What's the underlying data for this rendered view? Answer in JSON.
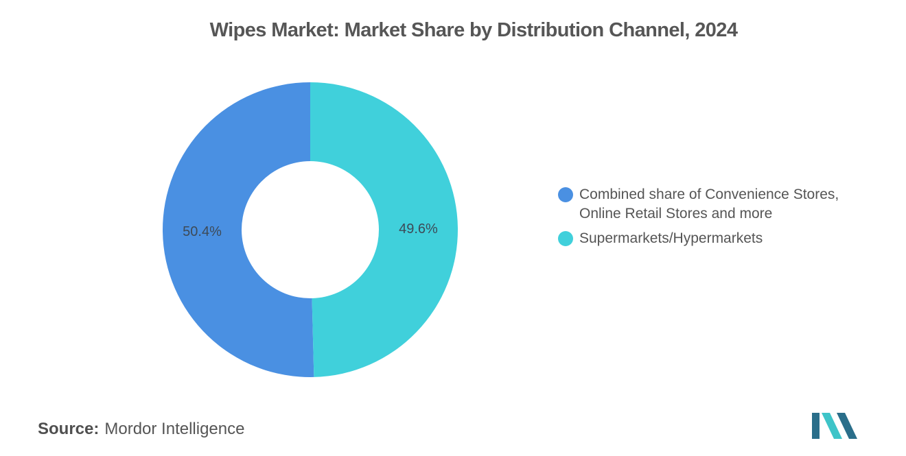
{
  "chart_data": {
    "type": "pie",
    "title": "Wipes Market: Market Share by Distribution Channel, 2024",
    "categories": [
      "Combined share of Convenience Stores, Online Retail Stores and more",
      "Supermarkets/Hypermarkets"
    ],
    "legend_lines": [
      [
        "Combined share of Convenience Stores,",
        "Online Retail Stores and more"
      ],
      [
        "Supermarkets/Hypermarkets"
      ]
    ],
    "values": [
      50.4,
      49.6
    ],
    "data_labels": [
      "50.4%",
      "49.6%"
    ],
    "colors": [
      "#4a90e2",
      "#40d0db"
    ],
    "legend_position": "right",
    "donut": true
  },
  "source": {
    "label": "Source:",
    "text": "Mordor Intelligence"
  },
  "logo": {
    "colors": [
      "#2a6e8a",
      "#3ec4c8"
    ]
  }
}
